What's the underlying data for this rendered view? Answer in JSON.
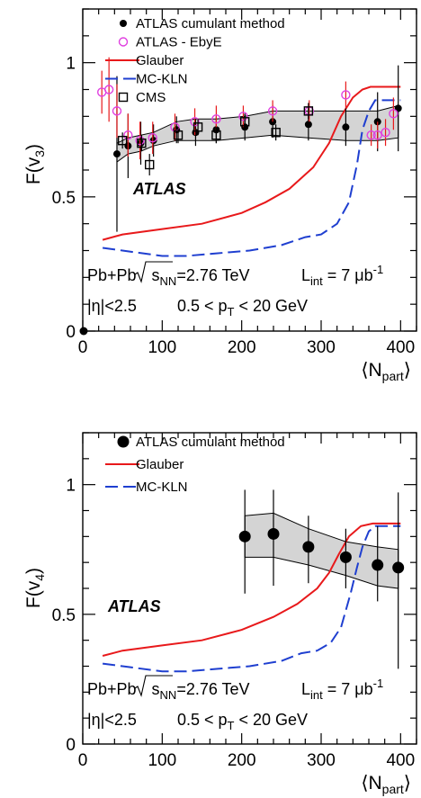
{
  "chart_data": [
    {
      "type": "scatter",
      "xlabel": "⟨N",
      "xlabel_sub": "part",
      "xlabel_close": "⟩",
      "ylabel": "F(v",
      "ylabel_sub": "3",
      "ylabel_close": ")",
      "xlim": [
        0,
        420
      ],
      "ylim": [
        0,
        1.2
      ],
      "xticks": [
        0,
        100,
        200,
        300,
        400
      ],
      "yticks": [
        0,
        0.5,
        1
      ],
      "ytick_labels": [
        "0",
        "0.5",
        "1"
      ],
      "experiment": "ATLAS",
      "info_line1": {
        "system": "Pb+Pb",
        "energy_sub": "NN",
        "energy_val": "=2.76 TeV",
        "lumi_sub": "int",
        "lumi_val": " = 7 μb",
        "lumi_sup": "-1"
      },
      "info_line2": {
        "eta": "|η|<2.5",
        "pt_pre": "0.5 < p",
        "pt_sub": "T",
        "pt_post": " < 20 GeV"
      },
      "legend": [
        {
          "label": "ATLAS cumulant method",
          "style": "filled-circle",
          "color": "#000000"
        },
        {
          "label": "ATLAS - EbyE",
          "style": "open-circle",
          "color": "#e040e0"
        },
        {
          "label": "Glauber",
          "style": "solid-line",
          "color": "#e8191b"
        },
        {
          "label": "MC-KLN",
          "style": "dashed-line",
          "color": "#1f3fd0"
        },
        {
          "label": "CMS",
          "style": "open-square",
          "color": "#000000"
        }
      ],
      "series": [
        {
          "name": "ATLAS cumulant method",
          "x": [
            1,
            43,
            57,
            73,
            89,
            118,
            142,
            168,
            204,
            239,
            284,
            331,
            371,
            397
          ],
          "y": [
            0.0,
            0.66,
            0.69,
            0.7,
            0.71,
            0.75,
            0.74,
            0.75,
            0.76,
            0.78,
            0.77,
            0.76,
            0.78,
            0.83
          ],
          "err": [
            0,
            0.29,
            0.12,
            0.08,
            0.06,
            0.05,
            0.05,
            0.05,
            0.05,
            0.06,
            0.06,
            0.07,
            0.11,
            0.16
          ],
          "band_low": [
            0.63,
            0.66,
            0.67,
            0.69,
            0.71,
            0.71,
            0.71,
            0.72,
            0.73,
            0.72,
            0.71,
            0.71,
            0.72
          ],
          "band_high": [
            0.7,
            0.72,
            0.73,
            0.74,
            0.78,
            0.79,
            0.79,
            0.8,
            0.82,
            0.82,
            0.82,
            0.82,
            0.84
          ],
          "band_x": [
            43,
            57,
            73,
            89,
            118,
            142,
            168,
            204,
            239,
            284,
            331,
            371,
            397
          ]
        },
        {
          "name": "ATLAS - EbyE",
          "x": [
            24,
            33,
            43,
            57,
            72,
            88,
            116,
            141,
            168,
            202,
            239,
            285,
            331,
            363,
            371,
            381,
            391
          ],
          "y": [
            0.89,
            0.9,
            0.82,
            0.73,
            0.71,
            0.72,
            0.76,
            0.78,
            0.79,
            0.8,
            0.82,
            0.82,
            0.88,
            0.73,
            0.73,
            0.74,
            0.81
          ],
          "err": [
            0.08,
            0.12,
            0.1,
            0.08,
            0.07,
            0.06,
            0.05,
            0.05,
            0.05,
            0.04,
            0.04,
            0.04,
            0.05,
            0.04,
            0.05,
            0.05,
            0.06
          ]
        },
        {
          "name": "CMS",
          "x": [
            50,
            74,
            84,
            120,
            145,
            168,
            204,
            243,
            284
          ],
          "y": [
            0.71,
            0.7,
            0.62,
            0.73,
            0.76,
            0.73,
            0.78,
            0.74,
            0.82
          ],
          "err": [
            0.03,
            0.03,
            0.04,
            0.03,
            0.03,
            0.03,
            0.03,
            0.03,
            0.03
          ]
        },
        {
          "name": "Glauber",
          "x": [
            25,
            50,
            100,
            150,
            200,
            230,
            260,
            290,
            310,
            325,
            340,
            352,
            362,
            370,
            400
          ],
          "y": [
            0.34,
            0.36,
            0.38,
            0.4,
            0.44,
            0.48,
            0.53,
            0.61,
            0.7,
            0.8,
            0.87,
            0.9,
            0.91,
            0.91,
            0.91
          ]
        },
        {
          "name": "MC-KLN",
          "x": [
            25,
            50,
            100,
            130,
            170,
            210,
            250,
            280,
            300,
            320,
            335,
            345,
            352,
            360,
            368,
            375,
            400
          ],
          "y": [
            0.31,
            0.3,
            0.28,
            0.28,
            0.29,
            0.3,
            0.32,
            0.35,
            0.36,
            0.4,
            0.48,
            0.62,
            0.75,
            0.82,
            0.86,
            0.86,
            0.86
          ]
        }
      ]
    },
    {
      "type": "scatter",
      "xlabel": "⟨N",
      "xlabel_sub": "part",
      "xlabel_close": "⟩",
      "ylabel": "F(v",
      "ylabel_sub": "4",
      "ylabel_close": ")",
      "xlim": [
        0,
        420
      ],
      "ylim": [
        0,
        1.2
      ],
      "xticks": [
        0,
        100,
        200,
        300,
        400
      ],
      "yticks": [
        0,
        0.5,
        1
      ],
      "ytick_labels": [
        "0",
        "0.5",
        "1"
      ],
      "experiment": "ATLAS",
      "info_line1": {
        "system": "Pb+Pb",
        "energy_sub": "NN",
        "energy_val": "=2.76 TeV",
        "lumi_sub": "int",
        "lumi_val": " = 7 μb",
        "lumi_sup": "-1"
      },
      "info_line2": {
        "eta": "|η|<2.5",
        "pt_pre": "0.5 < p",
        "pt_sub": "T",
        "pt_post": " < 20 GeV"
      },
      "legend": [
        {
          "label": "ATLAS cumulant method",
          "style": "filled-circle",
          "color": "#000000"
        },
        {
          "label": "Glauber",
          "style": "solid-line",
          "color": "#e8191b"
        },
        {
          "label": "MC-KLN",
          "style": "dashed-line",
          "color": "#1f3fd0"
        }
      ],
      "series": [
        {
          "name": "ATLAS cumulant method",
          "x": [
            204,
            240,
            284,
            331,
            371,
            397
          ],
          "y": [
            0.8,
            0.81,
            0.76,
            0.72,
            0.69,
            0.68
          ],
          "err_low": [
            0.22,
            0.2,
            0.14,
            0.12,
            0.14,
            0.39
          ],
          "err_high": [
            0.18,
            0.17,
            0.12,
            0.11,
            0.15,
            0.29
          ],
          "band_low": [
            0.72,
            0.72,
            0.69,
            0.65,
            0.61,
            0.6
          ],
          "band_high": [
            0.88,
            0.89,
            0.83,
            0.78,
            0.76,
            0.75
          ]
        },
        {
          "name": "Glauber",
          "x": [
            25,
            50,
            100,
            150,
            200,
            240,
            270,
            295,
            310,
            322,
            335,
            350,
            365,
            400
          ],
          "y": [
            0.34,
            0.36,
            0.38,
            0.4,
            0.44,
            0.49,
            0.54,
            0.6,
            0.66,
            0.73,
            0.8,
            0.84,
            0.85,
            0.85
          ]
        },
        {
          "name": "MC-KLN",
          "x": [
            25,
            50,
            100,
            130,
            170,
            210,
            250,
            275,
            295,
            312,
            325,
            337,
            345,
            352,
            360,
            368,
            400
          ],
          "y": [
            0.31,
            0.3,
            0.28,
            0.28,
            0.29,
            0.3,
            0.32,
            0.35,
            0.36,
            0.39,
            0.45,
            0.58,
            0.68,
            0.76,
            0.82,
            0.84,
            0.84
          ]
        }
      ]
    }
  ]
}
